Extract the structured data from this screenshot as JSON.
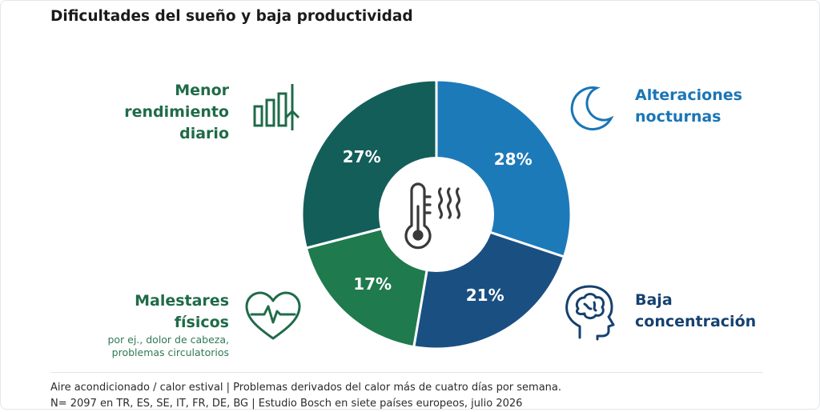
{
  "title": "Dificultades del sueño y baja productividad",
  "chart_data": {
    "type": "pie",
    "donut": true,
    "categories": [
      "Alteraciones nocturnas",
      "Baja concentración",
      "Malestares físicos",
      "Menor rendimiento diario"
    ],
    "values": [
      28,
      21,
      17,
      27
    ],
    "value_labels": [
      "28%",
      "21%",
      "17%",
      "27%"
    ],
    "colors": [
      "#1d7ab9",
      "#1a4f82",
      "#1f7a4d",
      "#145e5a"
    ],
    "center_icon": "thermometer-heat-icon"
  },
  "labels": {
    "menor": [
      "Menor",
      "rendimiento",
      "diario"
    ],
    "alteraciones": [
      "Alteraciones",
      "nocturnas"
    ],
    "malestares": [
      "Malestares",
      "físicos"
    ],
    "malestares_sub": [
      "por ej., dolor de cabeza,",
      "problemas circulatorios"
    ],
    "baja": [
      "Baja",
      "concentración"
    ]
  },
  "icons": {
    "menor": "bar-chart-up-icon",
    "alteraciones": "moon-icon",
    "malestares": "heart-pulse-icon",
    "baja": "head-brain-icon"
  },
  "footnote": [
    "Aire acondicionado / calor estival | Problemas derivados del calor más de cuatro días por semana.",
    "N= 2097 en TR, ES, SE, IT, FR, DE, BG | Estudio Bosch en siete países europeos, julio 2026"
  ]
}
